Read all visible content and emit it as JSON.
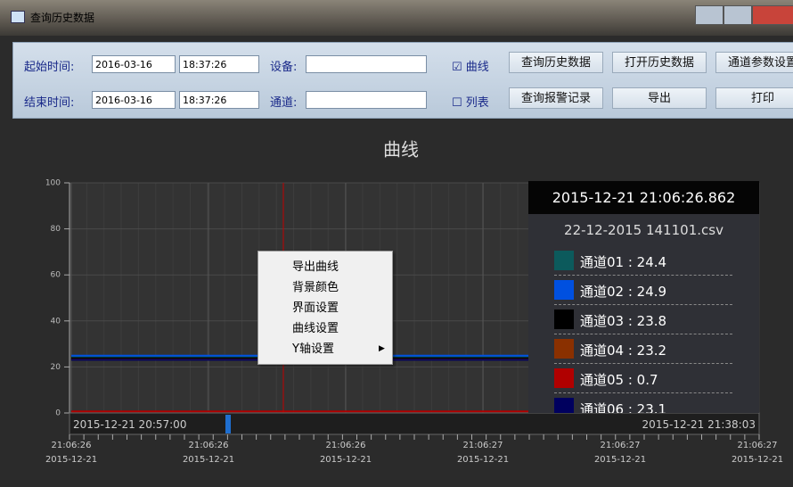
{
  "window": {
    "title": "查询历史数据"
  },
  "toolbar": {
    "start_label": "起始时间:",
    "start_date": "2016-03-16",
    "start_time": "18:37:26",
    "end_label": "结束时间:",
    "end_date": "2016-03-16",
    "end_time": "18:37:26",
    "device_label": "设备:",
    "channel_label": "通道:",
    "curve_check": "曲线",
    "list_check": "列表",
    "buttons": [
      "查询历史数据",
      "打开历史数据",
      "通道参数设置",
      "查询报警记录",
      "导出",
      "打印"
    ]
  },
  "chart_data": {
    "type": "line",
    "title": "曲线",
    "categories": [
      "21:06:26",
      "21:06:26",
      "21:06:26",
      "21:06:27",
      "21:06:27",
      "21:06:27"
    ],
    "category_dates": [
      "2015-12-21",
      "2015-12-21",
      "2015-12-21",
      "2015-12-21",
      "2015-12-21",
      "2015-12-21"
    ],
    "ylim": [
      0,
      100
    ],
    "yticks": [
      0,
      20,
      40,
      60,
      80,
      100
    ],
    "grid": true,
    "series": [
      {
        "name": "通道01",
        "color": "#0c5a5c",
        "values": [
          24.4,
          24.4,
          24.4,
          24.4,
          24.4,
          24.4
        ]
      },
      {
        "name": "通道02",
        "color": "#0050e0",
        "values": [
          24.9,
          24.9,
          24.9,
          24.9,
          24.9,
          24.9
        ]
      },
      {
        "name": "通道03",
        "color": "#000000",
        "values": [
          23.8,
          23.8,
          23.8,
          23.8,
          23.8,
          23.8
        ]
      },
      {
        "name": "通道04",
        "color": "#8a3000",
        "values": [
          23.2,
          23.2,
          23.2,
          23.2,
          23.2,
          23.2
        ]
      },
      {
        "name": "通道05",
        "color": "#b00000",
        "values": [
          0.7,
          0.7,
          0.7,
          0.7,
          0.7,
          0.7
        ]
      },
      {
        "name": "通道06",
        "color": "#00005e",
        "values": [
          23.1,
          23.1,
          23.1,
          23.1,
          23.1,
          23.1
        ]
      }
    ],
    "readout": {
      "time": "2015-12-21 21:06:26.862",
      "file": "22-12-2015 141101.csv",
      "entries": [
        "通道01 : 24.4",
        "通道02 : 24.9",
        "通道03 : 23.8",
        "通道04 : 23.2",
        "通道05 : 0.7",
        "通道06 : 23.1"
      ]
    },
    "range_start": "2015-12-21 20:57:00",
    "range_end": "2015-12-21 21:38:03"
  },
  "context_menu": {
    "items": [
      "导出曲线",
      "背景颜色",
      "界面设置",
      "曲线设置",
      "Y轴设置"
    ]
  }
}
